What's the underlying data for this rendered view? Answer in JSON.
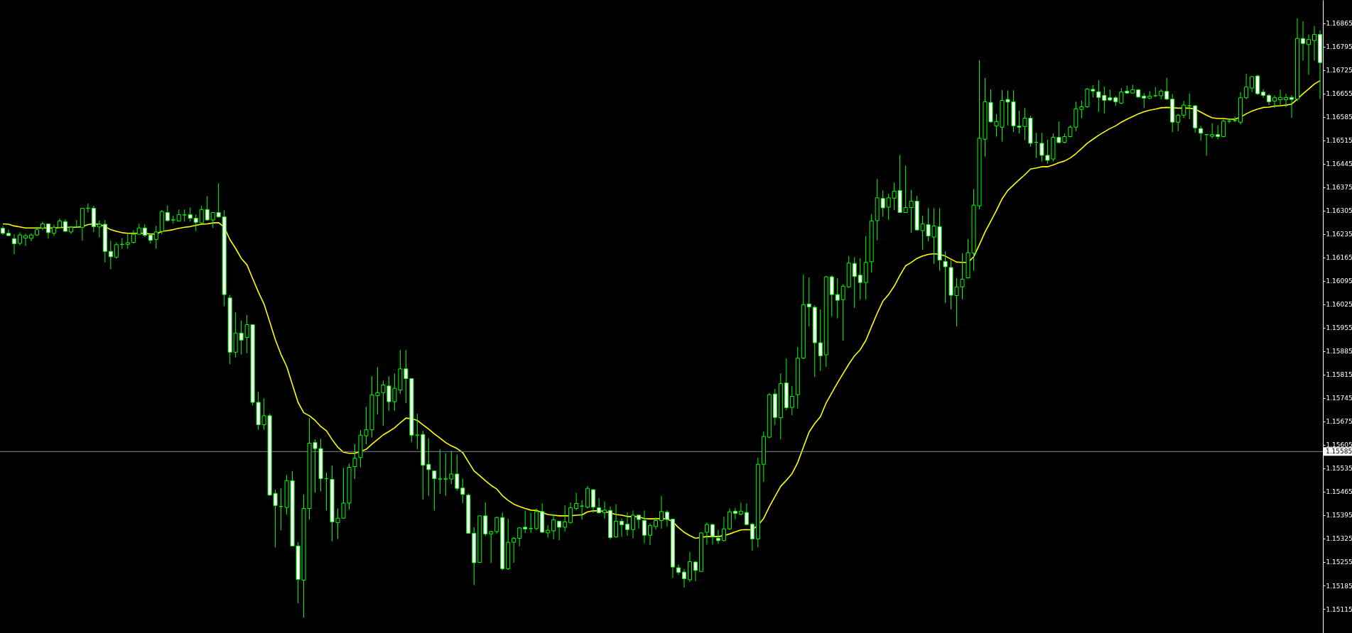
{
  "chart_data": {
    "type": "candlestick",
    "categories": [
      null,
      null,
      null,
      null,
      null,
      null,
      null,
      null,
      null,
      null,
      null,
      null,
      null,
      null,
      null,
      null,
      null,
      null,
      null,
      null,
      null,
      null,
      null,
      null,
      null,
      null,
      null,
      null,
      null,
      null,
      null,
      null,
      null,
      null,
      null,
      null,
      null,
      null,
      null,
      null,
      null,
      null,
      null,
      null,
      null,
      null,
      null,
      null,
      null,
      null,
      null,
      null,
      null,
      null,
      null,
      null,
      null,
      null,
      null,
      null,
      null,
      null,
      null,
      null,
      null,
      null,
      null,
      null,
      null,
      null,
      null,
      null,
      null,
      null,
      null,
      null,
      null,
      null,
      null,
      null,
      null,
      null,
      null,
      null,
      null,
      null,
      null,
      null,
      null,
      null,
      null,
      null,
      null,
      null,
      null,
      null,
      null,
      null,
      null,
      null,
      null,
      null,
      null,
      null,
      null,
      null,
      null,
      null,
      null,
      null,
      null,
      null,
      null,
      null,
      null,
      null,
      null,
      null,
      null,
      null,
      null,
      null,
      null,
      null,
      null,
      null,
      null,
      null,
      null,
      null,
      null,
      null,
      null,
      null,
      null,
      null,
      null,
      null,
      null,
      null,
      null,
      null,
      null,
      null,
      null,
      null,
      null,
      null,
      null,
      null,
      null,
      null,
      null,
      null,
      null,
      null,
      null,
      null,
      null,
      null,
      null,
      null,
      null,
      null,
      null,
      null,
      null,
      null,
      null,
      null,
      null,
      null,
      null,
      null,
      null,
      null,
      null,
      null,
      null,
      null,
      null,
      null,
      null,
      null,
      null,
      null,
      null,
      null,
      null,
      null,
      null,
      null,
      null,
      null,
      null,
      null,
      null,
      null,
      null,
      null,
      null,
      null,
      null,
      null,
      null,
      null,
      null,
      null,
      null,
      null,
      null,
      null,
      null,
      null,
      null,
      null,
      null,
      null,
      null,
      null,
      null,
      null,
      null,
      null,
      null,
      null,
      null,
      null,
      null,
      null,
      null,
      null,
      null
    ],
    "ylim": [
      1.15043,
      1.16934
    ],
    "yticks": [
      1.15115,
      1.15185,
      1.15255,
      1.15325,
      1.15395,
      1.15465,
      1.15535,
      1.15605,
      1.15675,
      1.15745,
      1.15815,
      1.15885,
      1.15955,
      1.16025,
      1.16095,
      1.16165,
      1.16235,
      1.16305,
      1.16375,
      1.16445,
      1.16515,
      1.16585,
      1.16655,
      1.16725,
      1.16795,
      1.16865
    ],
    "tick_labels": "y",
    "grid": false,
    "legend": false,
    "marker": "none",
    "ref_lines": [
      {
        "axis": "y",
        "value": 1.15585,
        "label": "1.15585",
        "color": "#778899"
      }
    ],
    "series": [
      {
        "type": "line",
        "color": "#ffff00",
        "values": [
          1.16265,
          1.16264,
          1.16259,
          1.16256,
          1.16253,
          1.16253,
          1.16253,
          1.16253,
          1.16253,
          1.16253,
          1.16254,
          1.16255,
          1.16255,
          1.16255,
          1.16257,
          1.16263,
          1.16265,
          1.16264,
          1.16257,
          1.16248,
          1.16243,
          1.16239,
          1.16237,
          1.16237,
          1.16237,
          1.16237,
          1.16235,
          1.16235,
          1.16243,
          1.16245,
          1.16248,
          1.16252,
          1.16255,
          1.16257,
          1.16261,
          1.16264,
          1.16265,
          1.16268,
          1.16269,
          1.16255,
          1.16218,
          1.16192,
          1.16162,
          1.16143,
          1.16102,
          1.16062,
          1.16026,
          1.15973,
          1.15919,
          1.15875,
          1.15839,
          1.15785,
          1.15732,
          1.15701,
          1.15692,
          1.15678,
          1.1566,
          1.15647,
          1.15621,
          1.15598,
          1.15583,
          1.1558,
          1.1558,
          1.15585,
          1.15592,
          1.15607,
          1.15621,
          1.15635,
          1.15645,
          1.15656,
          1.15671,
          1.15685,
          1.15683,
          1.15678,
          1.15665,
          1.15652,
          1.15638,
          1.15625,
          1.15612,
          1.15602,
          1.15594,
          1.15582,
          1.15554,
          1.15527,
          1.15513,
          1.15498,
          1.15484,
          1.15473,
          1.15453,
          1.15439,
          1.15428,
          1.15421,
          1.15415,
          1.1541,
          1.15409,
          1.15403,
          1.15397,
          1.15395,
          1.15393,
          1.15393,
          1.15393,
          1.15395,
          1.15396,
          1.15405,
          1.15408,
          1.15408,
          1.15406,
          1.15402,
          1.15397,
          1.15395,
          1.15391,
          1.15391,
          1.1539,
          1.15385,
          1.15384,
          1.15384,
          1.15385,
          1.15384,
          1.15375,
          1.15358,
          1.15344,
          1.15334,
          1.15326,
          1.15329,
          1.15331,
          1.15331,
          1.15331,
          1.15334,
          1.15339,
          1.15345,
          1.15351,
          1.15352,
          1.15351,
          1.15365,
          1.15385,
          1.1542,
          1.15451,
          1.15481,
          1.15499,
          1.15519,
          1.15552,
          1.15598,
          1.15643,
          1.15669,
          1.15689,
          1.1573,
          1.1576,
          1.1579,
          1.15818,
          1.15846,
          1.15871,
          1.15889,
          1.15917,
          1.15958,
          1.15998,
          1.16034,
          1.16054,
          1.16079,
          1.16111,
          1.1614,
          1.1615,
          1.16162,
          1.16169,
          1.16174,
          1.16176,
          1.16174,
          1.16169,
          1.1616,
          1.16151,
          1.1615,
          1.1615,
          1.16167,
          1.16203,
          1.16241,
          1.16273,
          1.16305,
          1.1634,
          1.16365,
          1.16381,
          1.16397,
          1.16412,
          1.16429,
          1.16432,
          1.16436,
          1.16436,
          1.16441,
          1.16448,
          1.16453,
          1.16462,
          1.16475,
          1.1649,
          1.16506,
          1.16518,
          1.1653,
          1.1654,
          1.1655,
          1.16558,
          1.16569,
          1.16578,
          1.16586,
          1.16594,
          1.166,
          1.16605,
          1.16608,
          1.16612,
          1.16613,
          1.16612,
          1.16611,
          1.16611,
          1.16611,
          1.16608,
          1.16599,
          1.1659,
          1.16582,
          1.1658,
          1.1658,
          1.16578,
          1.16578,
          1.16584,
          1.16594,
          1.16602,
          1.16608,
          1.16613,
          1.16614,
          1.16617,
          1.16618,
          1.1662,
          1.16623,
          1.16638,
          1.16654,
          1.16668,
          1.16683,
          1.16693
        ]
      },
      {
        "color": "#00ff00",
        "ohlc": [
          [
            1.16252,
            1.16259,
            1.16232,
            1.16237
          ],
          [
            1.16237,
            1.16248,
            1.1623,
            1.1623
          ],
          [
            1.16221,
            1.16234,
            1.16175,
            1.16206
          ],
          [
            1.16207,
            1.1624,
            1.16201,
            1.16232
          ],
          [
            1.16223,
            1.16236,
            1.16199,
            1.1623
          ],
          [
            1.16222,
            1.16237,
            1.16213,
            1.16232
          ],
          [
            1.16232,
            1.16256,
            1.16229,
            1.16248
          ],
          [
            1.16253,
            1.16272,
            1.16246,
            1.16265
          ],
          [
            1.16265,
            1.16265,
            1.16221,
            1.16239
          ],
          [
            1.16237,
            1.16263,
            1.16229,
            1.16255
          ],
          [
            1.16255,
            1.16281,
            1.16253,
            1.16274
          ],
          [
            1.16272,
            1.16279,
            1.16241,
            1.16243
          ],
          [
            1.16241,
            1.16259,
            1.16235,
            1.16255
          ],
          [
            1.16256,
            1.16277,
            1.16255,
            1.16256
          ],
          [
            1.16255,
            1.16312,
            1.16215,
            1.16312
          ],
          [
            1.16312,
            1.16326,
            1.16299,
            1.16312
          ],
          [
            1.16312,
            1.16319,
            1.16241,
            1.16257
          ],
          [
            1.16256,
            1.16275,
            1.16225,
            1.16264
          ],
          [
            1.16264,
            1.16277,
            1.1615,
            1.16183
          ],
          [
            1.16183,
            1.16215,
            1.1613,
            1.16167
          ],
          [
            1.16166,
            1.1621,
            1.16161,
            1.16203
          ],
          [
            1.16204,
            1.16223,
            1.16191,
            1.16204
          ],
          [
            1.16204,
            1.16234,
            1.16191,
            1.16209
          ],
          [
            1.1621,
            1.16246,
            1.16207,
            1.16234
          ],
          [
            1.16234,
            1.16266,
            1.16234,
            1.16253
          ],
          [
            1.16253,
            1.16264,
            1.16226,
            1.16231
          ],
          [
            1.16232,
            1.16237,
            1.16207,
            1.16216
          ],
          [
            1.16219,
            1.16259,
            1.16191,
            1.16241
          ],
          [
            1.16243,
            1.16307,
            1.16234,
            1.16302
          ],
          [
            1.16299,
            1.1632,
            1.16272,
            1.16275
          ],
          [
            1.16277,
            1.1629,
            1.16266,
            1.16277
          ],
          [
            1.16274,
            1.16308,
            1.16272,
            1.16293
          ],
          [
            1.16292,
            1.16308,
            1.16272,
            1.16292
          ],
          [
            1.16293,
            1.16314,
            1.16272,
            1.16282
          ],
          [
            1.16282,
            1.16293,
            1.16244,
            1.1627
          ],
          [
            1.16268,
            1.16319,
            1.16266,
            1.16308
          ],
          [
            1.16308,
            1.16348,
            1.16275,
            1.16277
          ],
          [
            1.16277,
            1.16301,
            1.16253,
            1.16299
          ],
          [
            1.16299,
            1.16386,
            1.16284,
            1.16286
          ],
          [
            1.16286,
            1.16306,
            1.16019,
            1.16054
          ],
          [
            1.16044,
            1.16053,
            1.15846,
            1.15882
          ],
          [
            1.15882,
            1.16001,
            1.15866,
            1.15939
          ],
          [
            1.15939,
            1.15977,
            1.15875,
            1.15918
          ],
          [
            1.15926,
            1.15993,
            1.15879,
            1.15964
          ],
          [
            1.15964,
            1.15964,
            1.15723,
            1.15732
          ],
          [
            1.15732,
            1.15763,
            1.1565,
            1.15665
          ],
          [
            1.15665,
            1.15744,
            1.1565,
            1.15692
          ],
          [
            1.15692,
            1.15698,
            1.15453,
            1.15455
          ],
          [
            1.1546,
            1.15471,
            1.15299,
            1.15424
          ],
          [
            1.15421,
            1.15475,
            1.1535,
            1.15421
          ],
          [
            1.15418,
            1.15515,
            1.15397,
            1.15498
          ],
          [
            1.15498,
            1.15527,
            1.15302,
            1.15303
          ],
          [
            1.15303,
            1.15314,
            1.15132,
            1.15203
          ],
          [
            1.15201,
            1.15457,
            1.15089,
            1.15415
          ],
          [
            1.15415,
            1.15685,
            1.15382,
            1.1561
          ],
          [
            1.15612,
            1.15621,
            1.15462,
            1.15594
          ],
          [
            1.15594,
            1.15623,
            1.15466,
            1.15504
          ],
          [
            1.15504,
            1.15522,
            1.15409,
            1.15504
          ],
          [
            1.15502,
            1.15543,
            1.15317,
            1.15375
          ],
          [
            1.15373,
            1.15415,
            1.15324,
            1.15386
          ],
          [
            1.15386,
            1.15536,
            1.15384,
            1.15431
          ],
          [
            1.15431,
            1.15549,
            1.15412,
            1.15538
          ],
          [
            1.1554,
            1.15607,
            1.15503,
            1.15565
          ],
          [
            1.15567,
            1.15649,
            1.15538,
            1.15634
          ],
          [
            1.15632,
            1.15719,
            1.15607,
            1.1565
          ],
          [
            1.1565,
            1.1581,
            1.15627,
            1.15754
          ],
          [
            1.15752,
            1.15837,
            1.15696,
            1.15761
          ],
          [
            1.15761,
            1.15797,
            1.15662,
            1.15784
          ],
          [
            1.15781,
            1.1581,
            1.15707,
            1.15734
          ],
          [
            1.15734,
            1.15818,
            1.15707,
            1.15774
          ],
          [
            1.15769,
            1.15888,
            1.15757,
            1.15832
          ],
          [
            1.15832,
            1.15888,
            1.1573,
            1.15803
          ],
          [
            1.15803,
            1.15803,
            1.15614,
            1.15634
          ],
          [
            1.15634,
            1.15698,
            1.15592,
            1.15634
          ],
          [
            1.15636,
            1.15647,
            1.15442,
            1.15544
          ],
          [
            1.15547,
            1.15625,
            1.15453,
            1.15531
          ],
          [
            1.15527,
            1.15528,
            1.15409,
            1.15504
          ],
          [
            1.15503,
            1.15591,
            1.15458,
            1.15503
          ],
          [
            1.15503,
            1.1558,
            1.15453,
            1.15503
          ],
          [
            1.15503,
            1.15587,
            1.15488,
            1.15518
          ],
          [
            1.15518,
            1.15576,
            1.15468,
            1.15475
          ],
          [
            1.15476,
            1.15504,
            1.15431,
            1.15457
          ],
          [
            1.15455,
            1.1546,
            1.15339,
            1.15341
          ],
          [
            1.15341,
            1.15359,
            1.15186,
            1.15253
          ],
          [
            1.15254,
            1.15393,
            1.15253,
            1.15393
          ],
          [
            1.15393,
            1.15433,
            1.15332,
            1.15339
          ],
          [
            1.15339,
            1.15348,
            1.15252,
            1.15346
          ],
          [
            1.15346,
            1.1539,
            1.15339,
            1.15388
          ],
          [
            1.15388,
            1.15403,
            1.1523,
            1.15235
          ],
          [
            1.15235,
            1.15384,
            1.15232,
            1.15314
          ],
          [
            1.15314,
            1.1533,
            1.15253,
            1.15326
          ],
          [
            1.15326,
            1.15359,
            1.15302,
            1.15357
          ],
          [
            1.15359,
            1.15409,
            1.15342,
            1.15354
          ],
          [
            1.15355,
            1.15402,
            1.15342,
            1.15355
          ],
          [
            1.15355,
            1.15415,
            1.1535,
            1.15406
          ],
          [
            1.15406,
            1.1543,
            1.15342,
            1.15344
          ],
          [
            1.15342,
            1.15366,
            1.15328,
            1.1535
          ],
          [
            1.15348,
            1.15395,
            1.15323,
            1.15381
          ],
          [
            1.15377,
            1.15377,
            1.1532,
            1.15359
          ],
          [
            1.15359,
            1.15424,
            1.15346,
            1.15375
          ],
          [
            1.15373,
            1.15433,
            1.1537,
            1.15417
          ],
          [
            1.15415,
            1.15462,
            1.1541,
            1.1543
          ],
          [
            1.15422,
            1.15439,
            1.15381,
            1.15422
          ],
          [
            1.15419,
            1.15482,
            1.15415,
            1.15475
          ],
          [
            1.15471,
            1.15473,
            1.15402,
            1.15419
          ],
          [
            1.15417,
            1.15446,
            1.154,
            1.15402
          ],
          [
            1.15402,
            1.15436,
            1.15384,
            1.1541
          ],
          [
            1.15409,
            1.15421,
            1.15323,
            1.15328
          ],
          [
            1.1533,
            1.15428,
            1.15328,
            1.15377
          ],
          [
            1.15377,
            1.15385,
            1.1533,
            1.15366
          ],
          [
            1.15368,
            1.15403,
            1.15333,
            1.15352
          ],
          [
            1.15352,
            1.15409,
            1.15326,
            1.15395
          ],
          [
            1.15395,
            1.15397,
            1.15355,
            1.15382
          ],
          [
            1.15379,
            1.15409,
            1.15311,
            1.15335
          ],
          [
            1.15335,
            1.1537,
            1.15306,
            1.15364
          ],
          [
            1.15361,
            1.15388,
            1.15352,
            1.15379
          ],
          [
            1.15379,
            1.15453,
            1.15355,
            1.15406
          ],
          [
            1.15404,
            1.1541,
            1.15361,
            1.15382
          ],
          [
            1.15383,
            1.15383,
            1.15207,
            1.1524
          ],
          [
            1.15238,
            1.15248,
            1.15217,
            1.15224
          ],
          [
            1.15225,
            1.15233,
            1.15179,
            1.15205
          ],
          [
            1.15202,
            1.15285,
            1.15195,
            1.15256
          ],
          [
            1.15255,
            1.15258,
            1.15197,
            1.1523
          ],
          [
            1.15227,
            1.15344,
            1.15227,
            1.15342
          ],
          [
            1.15344,
            1.15373,
            1.15307,
            1.15367
          ],
          [
            1.15367,
            1.1537,
            1.15307,
            1.15331
          ],
          [
            1.15326,
            1.15351,
            1.15309,
            1.15319
          ],
          [
            1.15319,
            1.1539,
            1.15317,
            1.15354
          ],
          [
            1.15354,
            1.15415,
            1.15351,
            1.15405
          ],
          [
            1.15407,
            1.15417,
            1.15383,
            1.154
          ],
          [
            1.15398,
            1.15432,
            1.15395,
            1.15407
          ],
          [
            1.15403,
            1.1543,
            1.15365,
            1.15367
          ],
          [
            1.15368,
            1.15372,
            1.15289,
            1.15324
          ],
          [
            1.15324,
            1.15567,
            1.15299,
            1.15547
          ],
          [
            1.15547,
            1.15645,
            1.15494,
            1.1563
          ],
          [
            1.15628,
            1.1576,
            1.15625,
            1.15755
          ],
          [
            1.15757,
            1.15772,
            1.15664,
            1.15687
          ],
          [
            1.15686,
            1.15818,
            1.15621,
            1.15788
          ],
          [
            1.1579,
            1.15863,
            1.15709,
            1.15716
          ],
          [
            1.15717,
            1.1578,
            1.15694,
            1.1575
          ],
          [
            1.15755,
            1.15897,
            1.15714,
            1.15864
          ],
          [
            1.15864,
            1.16113,
            1.15861,
            1.16024
          ],
          [
            1.16026,
            1.16105,
            1.15958,
            1.16017
          ],
          [
            1.16016,
            1.16022,
            1.15808,
            1.1591
          ],
          [
            1.1591,
            1.1601,
            1.15826,
            1.15871
          ],
          [
            1.15874,
            1.1611,
            1.15838,
            1.16107
          ],
          [
            1.16107,
            1.16112,
            1.15988,
            1.16054
          ],
          [
            1.16054,
            1.16103,
            1.15983,
            1.16037
          ],
          [
            1.16039,
            1.16085,
            1.15916,
            1.16079
          ],
          [
            1.16077,
            1.16169,
            1.16074,
            1.16148
          ],
          [
            1.16147,
            1.16166,
            1.16014,
            1.16108
          ],
          [
            1.16112,
            1.16163,
            1.16039,
            1.1609
          ],
          [
            1.1609,
            1.16229,
            1.16039,
            1.1615
          ],
          [
            1.16152,
            1.16294,
            1.1612,
            1.16274
          ],
          [
            1.16275,
            1.16399,
            1.16216,
            1.16343
          ],
          [
            1.16341,
            1.16365,
            1.16287,
            1.16313
          ],
          [
            1.16315,
            1.16355,
            1.16277,
            1.16343
          ],
          [
            1.16342,
            1.16388,
            1.16306,
            1.16363
          ],
          [
            1.16365,
            1.16471,
            1.16299,
            1.16299
          ],
          [
            1.16299,
            1.16439,
            1.16299,
            1.16314
          ],
          [
            1.16314,
            1.16367,
            1.16238,
            1.16333
          ],
          [
            1.16333,
            1.16349,
            1.16245,
            1.16247
          ],
          [
            1.16245,
            1.16289,
            1.16188,
            1.16265
          ],
          [
            1.16263,
            1.16312,
            1.16213,
            1.16229
          ],
          [
            1.16226,
            1.16312,
            1.16146,
            1.16259
          ],
          [
            1.16257,
            1.16312,
            1.16125,
            1.16157
          ],
          [
            1.16153,
            1.16183,
            1.16029,
            1.16137
          ],
          [
            1.16135,
            1.16157,
            1.1601,
            1.16052
          ],
          [
            1.16051,
            1.16104,
            1.15959,
            1.16077
          ],
          [
            1.16077,
            1.16178,
            1.1604,
            1.161
          ],
          [
            1.16104,
            1.1622,
            1.16102,
            1.16179
          ],
          [
            1.16178,
            1.16369,
            1.16125,
            1.16321
          ],
          [
            1.16319,
            1.16754,
            1.16309,
            1.16521
          ],
          [
            1.16518,
            1.16701,
            1.16466,
            1.1663
          ],
          [
            1.16628,
            1.16667,
            1.16567,
            1.1657
          ],
          [
            1.16558,
            1.16593,
            1.16526,
            1.16571
          ],
          [
            1.16554,
            1.16665,
            1.16511,
            1.16634
          ],
          [
            1.16637,
            1.16664,
            1.16559,
            1.16629
          ],
          [
            1.1663,
            1.16664,
            1.1654,
            1.16558
          ],
          [
            1.16557,
            1.16604,
            1.16535,
            1.16554
          ],
          [
            1.16556,
            1.16611,
            1.16515,
            1.16581
          ],
          [
            1.16581,
            1.16588,
            1.16496,
            1.16506
          ],
          [
            1.16509,
            1.16537,
            1.16462,
            1.16509
          ],
          [
            1.16506,
            1.16537,
            1.16451,
            1.1647
          ],
          [
            1.1647,
            1.16517,
            1.16445,
            1.16455
          ],
          [
            1.16459,
            1.16535,
            1.16452,
            1.16524
          ],
          [
            1.16524,
            1.16571,
            1.16506,
            1.16508
          ],
          [
            1.16509,
            1.16535,
            1.16505,
            1.16526
          ],
          [
            1.16526,
            1.16559,
            1.16524,
            1.16554
          ],
          [
            1.16554,
            1.1663,
            1.16542,
            1.16609
          ],
          [
            1.16607,
            1.16634,
            1.16581,
            1.16615
          ],
          [
            1.16615,
            1.16671,
            1.16612,
            1.16668
          ],
          [
            1.16667,
            1.1668,
            1.16643,
            1.16662
          ],
          [
            1.1666,
            1.16694,
            1.166,
            1.16643
          ],
          [
            1.16649,
            1.16675,
            1.16595,
            1.16634
          ],
          [
            1.16642,
            1.16666,
            1.16632,
            1.16635
          ],
          [
            1.16642,
            1.16647,
            1.16618,
            1.1663
          ],
          [
            1.16626,
            1.16671,
            1.16623,
            1.16659
          ],
          [
            1.16662,
            1.16678,
            1.16654,
            1.16656
          ],
          [
            1.16656,
            1.16681,
            1.16654,
            1.16666
          ],
          [
            1.16666,
            1.16668,
            1.16642,
            1.16644
          ],
          [
            1.16647,
            1.16656,
            1.16611,
            1.16641
          ],
          [
            1.16641,
            1.16662,
            1.16638,
            1.16647
          ],
          [
            1.16648,
            1.16674,
            1.16644,
            1.16648
          ],
          [
            1.16648,
            1.16668,
            1.16638,
            1.16662
          ],
          [
            1.16661,
            1.16702,
            1.16635,
            1.16638
          ],
          [
            1.16638,
            1.16653,
            1.16539,
            1.16569
          ],
          [
            1.16569,
            1.16594,
            1.16542,
            1.1659
          ],
          [
            1.1659,
            1.16632,
            1.16582,
            1.1662
          ],
          [
            1.16618,
            1.16655,
            1.16578,
            1.16618
          ],
          [
            1.16618,
            1.1662,
            1.16538,
            1.16552
          ],
          [
            1.1655,
            1.16558,
            1.16514,
            1.16536
          ],
          [
            1.16532,
            1.16533,
            1.16469,
            1.16532
          ],
          [
            1.16527,
            1.16566,
            1.16521,
            1.16532
          ],
          [
            1.16532,
            1.1656,
            1.16518,
            1.16526
          ],
          [
            1.16526,
            1.16577,
            1.16524,
            1.16572
          ],
          [
            1.16572,
            1.1658,
            1.16566,
            1.16572
          ],
          [
            1.16574,
            1.16586,
            1.16569,
            1.16574
          ],
          [
            1.16569,
            1.16659,
            1.16562,
            1.16642
          ],
          [
            1.16642,
            1.16714,
            1.16638,
            1.16674
          ],
          [
            1.16671,
            1.16707,
            1.16659,
            1.16705
          ],
          [
            1.16707,
            1.16711,
            1.1665,
            1.16654
          ],
          [
            1.16659,
            1.16668,
            1.16642,
            1.16649
          ],
          [
            1.16649,
            1.16654,
            1.1662,
            1.1663
          ],
          [
            1.16632,
            1.16649,
            1.16611,
            1.16642
          ],
          [
            1.16636,
            1.16666,
            1.16618,
            1.16643
          ],
          [
            1.16636,
            1.16654,
            1.16614,
            1.16643
          ],
          [
            1.16643,
            1.1665,
            1.16582,
            1.16637
          ],
          [
            1.16638,
            1.1688,
            1.16632,
            1.16819
          ],
          [
            1.16819,
            1.16871,
            1.16753,
            1.16804
          ],
          [
            1.16801,
            1.16831,
            1.16711,
            1.16816
          ],
          [
            1.16813,
            1.16856,
            1.16753,
            1.16831
          ],
          [
            1.16831,
            1.16843,
            1.16638,
            1.16747
          ]
        ]
      }
    ]
  }
}
